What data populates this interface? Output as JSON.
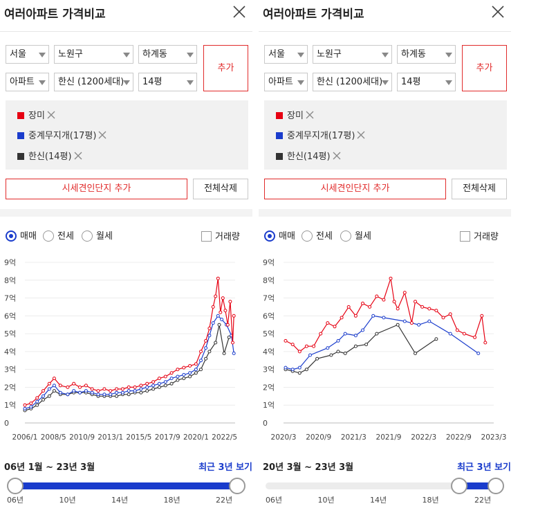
{
  "panels": [
    {
      "title": "여러아파트 가격비교",
      "selectors": {
        "city": "서울",
        "district": "노원구",
        "dong": "하계동",
        "type": "아파트",
        "complex": "한신 (1200세대)",
        "size": "14평"
      },
      "add_label": "추가",
      "chips": [
        {
          "label": "장미",
          "color": "#e60012"
        },
        {
          "label": "중계무지개(17평)",
          "color": "#1a3ccc"
        },
        {
          "label": "한신(14평)",
          "color": "#333333"
        }
      ],
      "compare_label": "시세견인단지 추가",
      "delete_all_label": "전체삭제",
      "trade_types": [
        "매매",
        "전세",
        "월세"
      ],
      "trade_selected": 0,
      "volume_label": "거래량",
      "range_text": "06년 1월 ~ 23년 3월",
      "recent_label": "최근 3년 보기",
      "slider": {
        "ticks": [
          "06년",
          "10년",
          "14년",
          "18년",
          "22년"
        ],
        "min_year": 2006.0,
        "max_year": 2023.0,
        "start": 2006.0,
        "end": 2023.0
      },
      "chart_data": {
        "type": "line",
        "y_tick_labels": [
          "0",
          "1억",
          "2억",
          "3억",
          "4억",
          "5억",
          "6억",
          "7억",
          "8억",
          "9억"
        ],
        "ylim": [
          0,
          9
        ],
        "x_tick_labels": [
          "2006/1",
          "2008/5",
          "2010/9",
          "2013/1",
          "2015/5",
          "2017/9",
          "2020/1",
          "2022/5"
        ],
        "xlim": [
          2006.0,
          2023.2
        ],
        "x_tick_positions": [
          2006.0,
          2008.33,
          2010.67,
          2013.0,
          2015.33,
          2017.67,
          2020.0,
          2022.33
        ],
        "series": [
          {
            "name": "장미",
            "color": "#e60012",
            "markers": true,
            "x": [
              2006.0,
              2006.5,
              2007.0,
              2007.5,
              2008.0,
              2008.4,
              2008.9,
              2009.5,
              2010.0,
              2010.5,
              2011.0,
              2011.5,
              2012.0,
              2012.5,
              2013.0,
              2013.5,
              2014.0,
              2014.5,
              2015.0,
              2015.5,
              2016.0,
              2016.5,
              2017.0,
              2017.5,
              2018.0,
              2018.5,
              2019.0,
              2019.5,
              2020.0,
              2020.4,
              2020.8,
              2021.1,
              2021.4,
              2021.6,
              2021.8,
              2022.0,
              2022.2,
              2022.4,
              2022.6,
              2022.8,
              2023.0,
              2023.1
            ],
            "y": [
              1.0,
              1.1,
              1.4,
              1.8,
              2.2,
              2.5,
              2.1,
              2.0,
              2.2,
              2.0,
              2.1,
              1.9,
              1.8,
              1.9,
              1.8,
              1.9,
              1.9,
              2.0,
              2.0,
              2.1,
              2.2,
              2.3,
              2.5,
              2.6,
              2.8,
              3.0,
              3.1,
              3.2,
              3.3,
              4.0,
              4.6,
              5.3,
              6.5,
              7.1,
              8.1,
              6.2,
              7.0,
              6.3,
              5.5,
              6.8,
              4.5,
              6.0
            ]
          },
          {
            "name": "중계무지개(17평)",
            "color": "#1a3ccc",
            "markers": true,
            "x": [
              2006.0,
              2006.5,
              2007.0,
              2007.5,
              2008.0,
              2008.4,
              2008.9,
              2009.5,
              2010.0,
              2010.5,
              2011.0,
              2011.5,
              2012.0,
              2012.5,
              2013.0,
              2013.5,
              2014.0,
              2014.5,
              2015.0,
              2015.5,
              2016.0,
              2016.5,
              2017.0,
              2017.5,
              2018.0,
              2018.5,
              2019.0,
              2019.5,
              2020.0,
              2020.4,
              2020.8,
              2021.1,
              2021.4,
              2021.8,
              2022.1,
              2022.5,
              2022.9,
              2023.1
            ],
            "y": [
              0.8,
              0.9,
              1.2,
              1.5,
              1.9,
              2.1,
              1.7,
              1.6,
              1.8,
              1.7,
              1.8,
              1.7,
              1.6,
              1.6,
              1.6,
              1.7,
              1.7,
              1.8,
              1.8,
              1.9,
              2.0,
              2.1,
              2.2,
              2.3,
              2.5,
              2.6,
              2.7,
              2.8,
              3.0,
              3.5,
              4.2,
              4.9,
              5.6,
              6.0,
              5.8,
              5.5,
              4.9,
              3.9
            ]
          },
          {
            "name": "한신(14평)",
            "color": "#333333",
            "markers": true,
            "x": [
              2006.0,
              2006.5,
              2007.0,
              2007.5,
              2008.0,
              2008.4,
              2008.9,
              2009.5,
              2010.0,
              2010.5,
              2011.0,
              2011.5,
              2012.0,
              2012.5,
              2013.0,
              2013.5,
              2014.0,
              2014.5,
              2015.0,
              2015.5,
              2016.0,
              2016.5,
              2017.0,
              2017.5,
              2018.0,
              2018.5,
              2019.0,
              2019.5,
              2020.0,
              2020.4,
              2020.8,
              2021.1,
              2021.6,
              2021.9,
              2022.3,
              2022.7
            ],
            "y": [
              0.7,
              0.8,
              1.0,
              1.3,
              1.5,
              1.8,
              1.6,
              1.6,
              1.7,
              1.7,
              1.7,
              1.6,
              1.5,
              1.5,
              1.5,
              1.5,
              1.6,
              1.6,
              1.7,
              1.7,
              1.8,
              1.9,
              2.0,
              2.1,
              2.2,
              2.4,
              2.5,
              2.6,
              2.8,
              3.0,
              3.6,
              4.0,
              4.5,
              5.5,
              3.9,
              4.8
            ]
          }
        ]
      }
    },
    {
      "title": "여러아파트 가격비교",
      "selectors": {
        "city": "서울",
        "district": "노원구",
        "dong": "하계동",
        "type": "아파트",
        "complex": "한신 (1200세대)",
        "size": "14평"
      },
      "add_label": "추가",
      "chips": [
        {
          "label": "장미",
          "color": "#e60012"
        },
        {
          "label": "중계무지개(17평)",
          "color": "#1a3ccc"
        },
        {
          "label": "한신(14평)",
          "color": "#333333"
        }
      ],
      "compare_label": "시세견인단지 추가",
      "delete_all_label": "전체삭제",
      "trade_types": [
        "매매",
        "전세",
        "월세"
      ],
      "trade_selected": 0,
      "volume_label": "거래량",
      "range_text": "20년 3월 ~ 23년 3월",
      "recent_label": "최근 3년 보기",
      "slider": {
        "ticks": [
          "06년",
          "10년",
          "14년",
          "18년",
          "22년"
        ],
        "min_year": 2006.0,
        "max_year": 2023.0,
        "start": 2020.2,
        "end": 2023.0
      },
      "chart_data": {
        "type": "line",
        "y_tick_labels": [
          "0",
          "1억",
          "2억",
          "3억",
          "4억",
          "5억",
          "6억",
          "7억",
          "8억",
          "9억"
        ],
        "ylim": [
          0,
          9
        ],
        "x_tick_labels": [
          "2020/3",
          "2020/9",
          "2021/3",
          "2021/9",
          "2022/3",
          "2022/9",
          "2023/3"
        ],
        "xlim": [
          2020.17,
          2023.17
        ],
        "x_tick_positions": [
          2020.17,
          2020.67,
          2021.17,
          2021.67,
          2022.17,
          2022.67,
          2023.17
        ],
        "series": [
          {
            "name": "장미",
            "color": "#e60012",
            "markers": true,
            "x": [
              2020.2,
              2020.3,
              2020.4,
              2020.5,
              2020.6,
              2020.7,
              2020.8,
              2020.9,
              2021.0,
              2021.1,
              2021.2,
              2021.3,
              2021.4,
              2021.5,
              2021.6,
              2021.7,
              2021.75,
              2021.8,
              2021.9,
              2022.0,
              2022.05,
              2022.15,
              2022.25,
              2022.35,
              2022.45,
              2022.55,
              2022.65,
              2022.75,
              2022.9,
              2023.0,
              2023.05
            ],
            "y": [
              4.6,
              4.4,
              4.0,
              4.3,
              4.3,
              5.0,
              5.6,
              5.4,
              5.9,
              6.5,
              6.0,
              6.7,
              6.5,
              7.1,
              6.9,
              8.1,
              6.8,
              6.4,
              7.3,
              5.6,
              6.8,
              6.5,
              6.4,
              6.3,
              5.9,
              6.1,
              5.2,
              5.0,
              4.8,
              6.0,
              4.5
            ]
          },
          {
            "name": "중계무지개(17평)",
            "color": "#1a3ccc",
            "markers": true,
            "x": [
              2020.2,
              2020.3,
              2020.4,
              2020.55,
              2020.8,
              2020.95,
              2021.05,
              2021.2,
              2021.3,
              2021.45,
              2021.6,
              2021.9,
              2022.1,
              2022.25,
              2022.55,
              2022.95
            ],
            "y": [
              3.1,
              3.0,
              3.1,
              3.8,
              4.2,
              4.6,
              5.0,
              4.9,
              5.2,
              6.0,
              5.9,
              5.7,
              5.5,
              5.7,
              5.0,
              3.9
            ]
          },
          {
            "name": "한신(14평)",
            "color": "#333333",
            "markers": true,
            "x": [
              2020.2,
              2020.3,
              2020.4,
              2020.5,
              2020.65,
              2020.85,
              2020.95,
              2021.05,
              2021.2,
              2021.35,
              2021.5,
              2021.8,
              2022.05,
              2022.35
            ],
            "y": [
              3.0,
              2.9,
              2.8,
              3.0,
              3.6,
              3.8,
              4.0,
              3.9,
              4.3,
              4.4,
              5.0,
              5.5,
              3.9,
              4.7
            ]
          }
        ]
      }
    }
  ]
}
